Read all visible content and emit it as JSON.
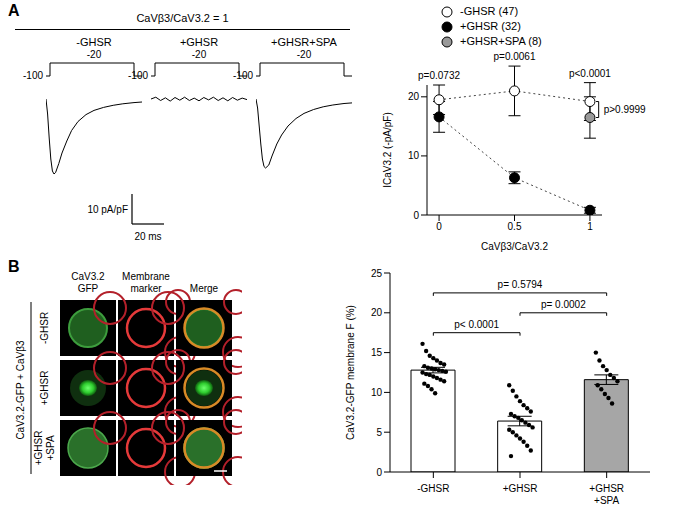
{
  "figure": {
    "panel_labels": [
      "A",
      "B"
    ],
    "ratio_title": "CaVβ3/CaV3.2 = 1",
    "protocol": {
      "holding": "-100",
      "test": "-20"
    },
    "scale_bar": {
      "y": 10,
      "y_label": "10 pA/pF",
      "x": 20,
      "x_label": "20 ms"
    },
    "image_grid": {
      "group_label": "CaV3.2-GFP + CaVβ3",
      "columns": [
        "CaV3.2 GFP",
        "Membrane marker",
        "Merge"
      ],
      "rows": [
        "-GHSR",
        "+GHSR",
        "+GHSR +SPA"
      ]
    }
  },
  "chart_data": [
    {
      "type": "line",
      "title": "-GHSR",
      "x": [
        0,
        1,
        2,
        3,
        4,
        5,
        6,
        8,
        10,
        13,
        16,
        20,
        25,
        30,
        36,
        42,
        48,
        55,
        60
      ],
      "values": [
        0,
        -5,
        -13,
        -20,
        -24,
        -25,
        -24.5,
        -21.5,
        -18,
        -14,
        -10.5,
        -7.5,
        -5.2,
        -3.8,
        -2.8,
        -2.1,
        -1.6,
        -1.2,
        -1
      ],
      "xlim": [
        0,
        60
      ],
      "ylim": [
        -27,
        3
      ],
      "tick_labels": false,
      "color": "#000000"
    },
    {
      "type": "line",
      "title": "+GHSR",
      "x": [
        0,
        3,
        6,
        9,
        12,
        15,
        18,
        21,
        24,
        27,
        30,
        33,
        36,
        39,
        42,
        45,
        48,
        51,
        54,
        57,
        60
      ],
      "values": [
        0,
        0.6,
        -0.5,
        0.4,
        -0.7,
        0.5,
        -0.4,
        0.6,
        -0.5,
        0.3,
        -0.6,
        0.5,
        -0.3,
        0.6,
        -0.5,
        0.4,
        -0.6,
        0.5,
        -0.4,
        0.3,
        -0.2
      ],
      "xlim": [
        0,
        60
      ],
      "ylim": [
        -27,
        3
      ],
      "tick_labels": false,
      "color": "#000000"
    },
    {
      "type": "line",
      "title": "+GHSR+SPA",
      "x": [
        0,
        1,
        2,
        3,
        4,
        5,
        6,
        8,
        10,
        13,
        16,
        20,
        25,
        30,
        36,
        42,
        48,
        55,
        60
      ],
      "values": [
        0,
        -3,
        -9,
        -15,
        -20,
        -22.5,
        -23,
        -22,
        -19,
        -15,
        -12,
        -9,
        -6.5,
        -4.8,
        -3.5,
        -2.6,
        -2,
        -1.5,
        -1.3
      ],
      "xlim": [
        0,
        60
      ],
      "ylim": [
        -27,
        3
      ],
      "tick_labels": false,
      "color": "#000000"
    },
    {
      "type": "line",
      "x": [
        0,
        0.5,
        1
      ],
      "x_label": "CaVβ3/CaV3.2",
      "y_label": "ICaV3.2 (-pA/pF)",
      "xlim": [
        -0.08,
        1.08
      ],
      "xticks": [
        0,
        0.5,
        1
      ],
      "ylim": [
        0,
        22
      ],
      "yticks": [
        0,
        10,
        20
      ],
      "legend": "top right",
      "line_style": "dotted",
      "marker": "circle",
      "series": [
        {
          "name": "-GHSR (47)",
          "color": "#ffffff",
          "values": [
            19.5,
            21,
            19.2
          ],
          "errors": [
            2.5,
            4.2,
            3.2
          ]
        },
        {
          "name": "+GHSR (32)",
          "color": "#000000",
          "values": [
            16.6,
            6.3,
            0.8
          ],
          "errors": [
            2.6,
            1,
            0.5
          ]
        },
        {
          "name": "+GHSR+SPA (8)",
          "color": "#999999",
          "values": [
            null,
            null,
            16.5
          ],
          "errors": [
            null,
            null,
            3.5
          ]
        }
      ],
      "annotations": [
        {
          "text": "p=0.0732",
          "x": 0
        },
        {
          "text": "p=0.0061",
          "x": 0.5
        },
        {
          "text": "p<0.0001",
          "x": 1
        },
        {
          "text": "p>0.9999",
          "x": 1,
          "between": [
            "-GHSR (47)",
            "+GHSR+SPA (8)"
          ]
        }
      ]
    },
    {
      "type": "bar",
      "categories": [
        "-GHSR",
        "+GHSR",
        "+GHSR +SPA"
      ],
      "values": [
        12.8,
        6.4,
        11.6
      ],
      "errors": [
        0.35,
        0.6,
        0.6
      ],
      "colors": [
        "#ffffff",
        "#ffffff",
        "#a6a6a6"
      ],
      "points": [
        [
          16.1,
          15.2,
          14.6,
          14.3,
          14.0,
          13.7,
          13.5,
          13.3,
          13.1,
          13.0,
          12.9,
          12.8,
          12.7,
          12.6,
          12.5,
          12.3,
          12.2,
          12.0,
          11.8,
          11.6,
          11.4,
          11.1,
          10.8,
          10.4,
          9.9
        ],
        [
          10.9,
          10.2,
          9.5,
          8.9,
          8.4,
          8.0,
          7.6,
          7.3,
          7.0,
          6.8,
          6.5,
          6.2,
          5.9,
          5.6,
          5.3,
          5.0,
          4.6,
          4.2,
          3.8,
          3.3,
          2.7,
          2.0
        ],
        [
          15.0,
          14.0,
          13.3,
          12.8,
          12.2,
          11.8,
          11.4,
          10.9,
          10.4,
          9.8,
          9.3,
          8.6
        ]
      ],
      "y_label": "CaV3.2-GFP membrane F (%)",
      "ylim": [
        0,
        25
      ],
      "yticks": [
        0,
        5,
        10,
        15,
        20,
        25
      ],
      "annotations": [
        {
          "text": "p< 0.0001",
          "between": [
            "-GHSR",
            "+GHSR"
          ]
        },
        {
          "text": "p= 0.0002",
          "between": [
            "+GHSR",
            "+GHSR +SPA"
          ]
        },
        {
          "text": "p= 0.5794",
          "between": [
            "-GHSR",
            "+GHSR +SPA"
          ]
        }
      ]
    }
  ]
}
